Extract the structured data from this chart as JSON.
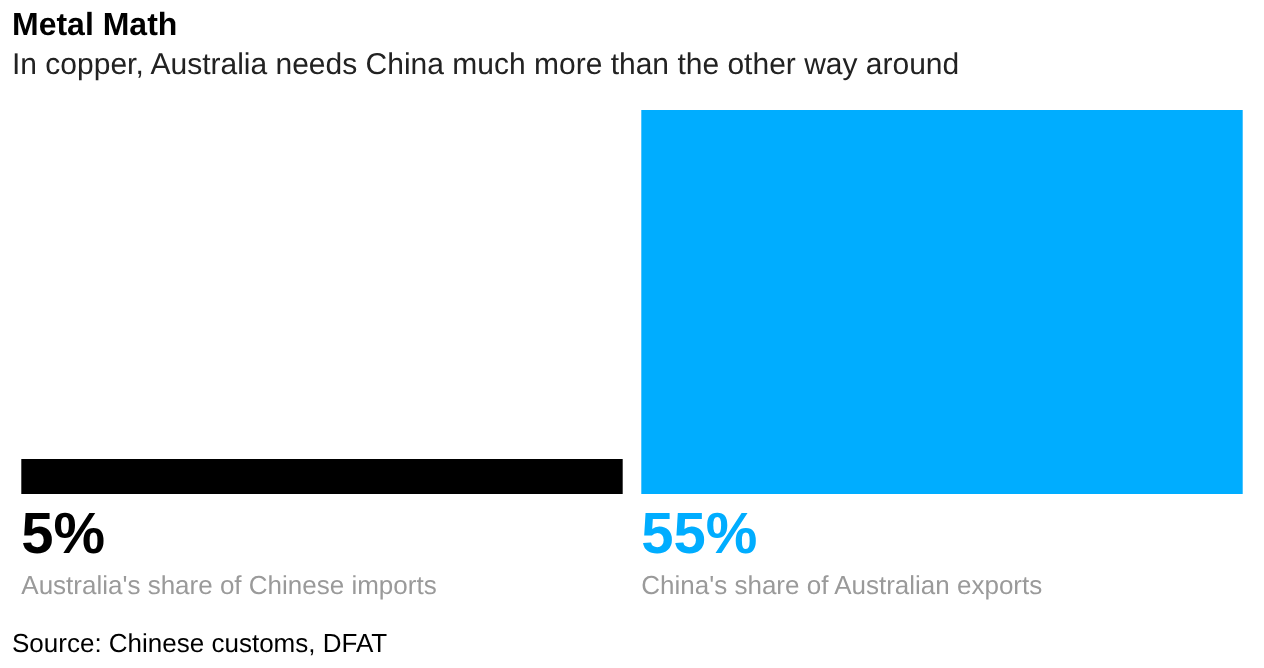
{
  "chart_data": {
    "type": "bar",
    "title": "Metal Math",
    "subtitle": "In copper, Australia needs China much more than the other way around",
    "categories": [
      "Australia's share of Chinese imports",
      "China's share of Australian exports"
    ],
    "values": [
      5,
      55
    ],
    "colors": [
      "#000000",
      "#00adff"
    ],
    "value_labels": [
      "5%",
      "55%"
    ],
    "annotations": [
      "Source: Chinese customs, DFAT"
    ]
  }
}
